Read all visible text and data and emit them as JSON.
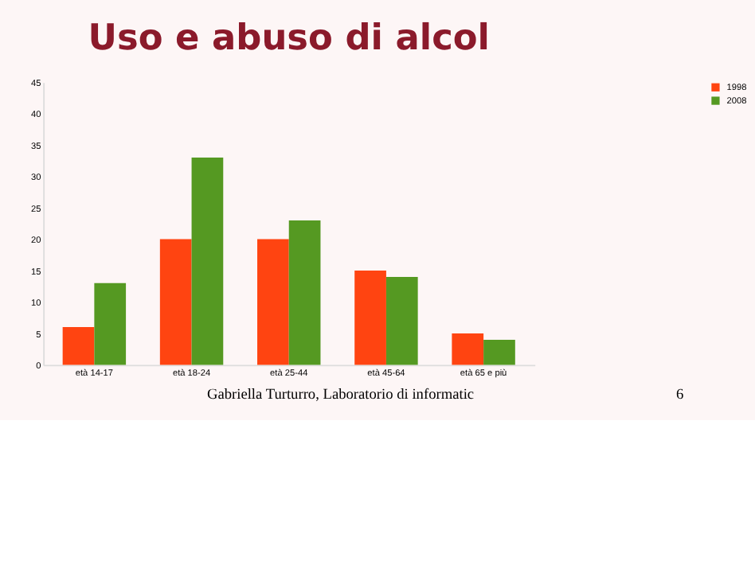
{
  "chart_data": {
    "type": "bar",
    "title": "Uso e abuso di alcol",
    "categories": [
      "età 14-17",
      "età 18-24",
      "età 25-44",
      "età 45-64",
      "età 65 e più"
    ],
    "series": [
      {
        "name": "1998",
        "color": "#ff4411",
        "values": [
          6,
          20,
          20,
          15,
          5
        ]
      },
      {
        "name": "2008",
        "color": "#559922",
        "values": [
          13,
          33,
          23,
          14,
          4
        ]
      }
    ],
    "ylim": [
      0,
      45
    ],
    "yticks": [
      0,
      5,
      10,
      15,
      20,
      25,
      30,
      35,
      40,
      45
    ],
    "grid": false,
    "legend": "right",
    "annotations": [
      "Gabriella Turturro, Laboratorio di informatic",
      "6"
    ]
  }
}
